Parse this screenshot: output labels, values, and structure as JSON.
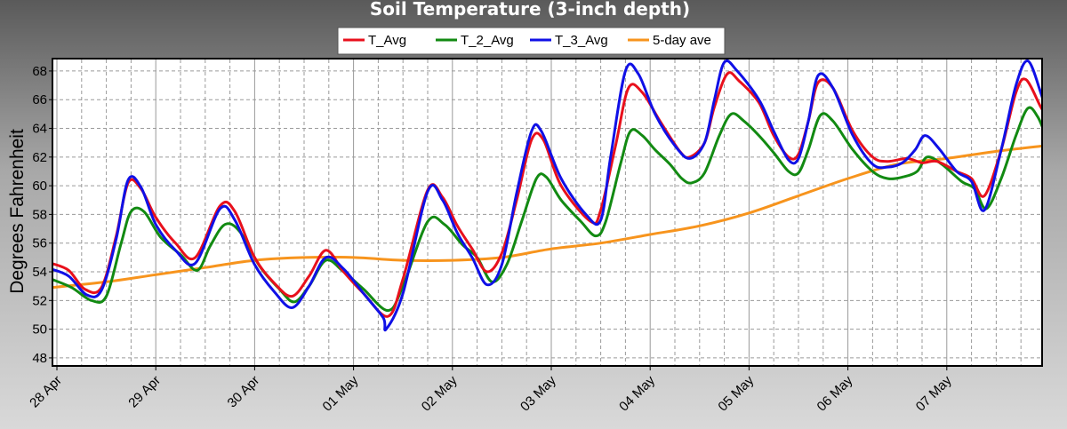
{
  "chart_data": {
    "type": "line",
    "title": "Soil Temperature (3-inch depth)",
    "xlabel": "",
    "ylabel": "Degrees Fahrenheit",
    "ylim": [
      47.5,
      68.8
    ],
    "yticks": [
      48,
      50,
      52,
      54,
      56,
      58,
      60,
      62,
      64,
      66,
      68
    ],
    "xlim": [
      0,
      10.0
    ],
    "xticks": [
      {
        "pos": 0.0,
        "label": "28 Apr"
      },
      {
        "pos": 1.0,
        "label": "29 Apr"
      },
      {
        "pos": 2.0,
        "label": "30 Apr"
      },
      {
        "pos": 3.0,
        "label": "01 May"
      },
      {
        "pos": 4.0,
        "label": "02 May"
      },
      {
        "pos": 5.0,
        "label": "03 May"
      },
      {
        "pos": 6.0,
        "label": "04 May"
      },
      {
        "pos": 7.0,
        "label": "05 May"
      },
      {
        "pos": 8.0,
        "label": "06 May"
      },
      {
        "pos": 9.0,
        "label": "07 May"
      }
    ],
    "grid": true,
    "legend_position": "top-center",
    "series": [
      {
        "name": "T_Avg",
        "color": "#e8101c",
        "points": [
          [
            -0.06,
            54.6
          ],
          [
            0.12,
            54.1
          ],
          [
            0.28,
            52.8
          ],
          [
            0.45,
            52.9
          ],
          [
            0.6,
            56.5
          ],
          [
            0.72,
            60.2
          ],
          [
            0.85,
            59.8
          ],
          [
            1.0,
            57.8
          ],
          [
            1.2,
            56.0
          ],
          [
            1.4,
            55.0
          ],
          [
            1.65,
            58.6
          ],
          [
            1.8,
            58.2
          ],
          [
            2.0,
            55.0
          ],
          [
            2.2,
            53.2
          ],
          [
            2.38,
            52.3
          ],
          [
            2.55,
            53.7
          ],
          [
            2.72,
            55.5
          ],
          [
            2.9,
            54.0
          ],
          [
            3.1,
            52.5
          ],
          [
            3.35,
            50.9
          ],
          [
            3.5,
            53.5
          ],
          [
            3.75,
            59.7
          ],
          [
            3.9,
            59.2
          ],
          [
            4.05,
            57.2
          ],
          [
            4.2,
            55.6
          ],
          [
            4.35,
            54.0
          ],
          [
            4.5,
            55.3
          ],
          [
            4.65,
            59.0
          ],
          [
            4.8,
            63.2
          ],
          [
            4.92,
            63.2
          ],
          [
            5.1,
            60.0
          ],
          [
            5.4,
            57.5
          ],
          [
            5.5,
            58.3
          ],
          [
            5.65,
            62.8
          ],
          [
            5.78,
            66.8
          ],
          [
            5.92,
            66.5
          ],
          [
            6.1,
            64.5
          ],
          [
            6.3,
            62.4
          ],
          [
            6.4,
            62.0
          ],
          [
            6.55,
            63.0
          ],
          [
            6.65,
            65.5
          ],
          [
            6.78,
            67.8
          ],
          [
            6.9,
            67.3
          ],
          [
            7.1,
            65.8
          ],
          [
            7.25,
            63.5
          ],
          [
            7.4,
            62.0
          ],
          [
            7.5,
            62.2
          ],
          [
            7.6,
            64.5
          ],
          [
            7.7,
            67.2
          ],
          [
            7.85,
            66.8
          ],
          [
            8.05,
            63.8
          ],
          [
            8.25,
            62.0
          ],
          [
            8.4,
            61.7
          ],
          [
            8.6,
            61.9
          ],
          [
            8.75,
            61.6
          ],
          [
            8.9,
            61.7
          ],
          [
            9.1,
            61.0
          ],
          [
            9.25,
            60.5
          ],
          [
            9.38,
            59.3
          ],
          [
            9.55,
            62.5
          ],
          [
            9.7,
            66.5
          ],
          [
            9.8,
            67.4
          ],
          [
            9.95,
            65.5
          ],
          [
            10.0,
            65.0
          ]
        ]
      },
      {
        "name": "T_2_Avg",
        "color": "#128a12",
        "points": [
          [
            -0.06,
            53.5
          ],
          [
            0.15,
            52.9
          ],
          [
            0.35,
            52.0
          ],
          [
            0.5,
            52.3
          ],
          [
            0.65,
            56.0
          ],
          [
            0.75,
            58.2
          ],
          [
            0.88,
            58.2
          ],
          [
            1.05,
            56.4
          ],
          [
            1.25,
            55.2
          ],
          [
            1.42,
            54.1
          ],
          [
            1.55,
            55.8
          ],
          [
            1.7,
            57.3
          ],
          [
            1.85,
            56.8
          ],
          [
            2.05,
            54.4
          ],
          [
            2.25,
            52.8
          ],
          [
            2.4,
            51.9
          ],
          [
            2.55,
            53.0
          ],
          [
            2.72,
            54.8
          ],
          [
            2.9,
            54.0
          ],
          [
            3.1,
            52.8
          ],
          [
            3.35,
            51.3
          ],
          [
            3.5,
            53.0
          ],
          [
            3.75,
            57.5
          ],
          [
            3.92,
            57.3
          ],
          [
            4.1,
            55.9
          ],
          [
            4.25,
            55.0
          ],
          [
            4.4,
            53.3
          ],
          [
            4.55,
            54.5
          ],
          [
            4.7,
            57.5
          ],
          [
            4.85,
            60.5
          ],
          [
            4.95,
            60.6
          ],
          [
            5.1,
            59.0
          ],
          [
            5.3,
            57.5
          ],
          [
            5.45,
            56.5
          ],
          [
            5.55,
            57.5
          ],
          [
            5.7,
            61.5
          ],
          [
            5.8,
            63.8
          ],
          [
            5.92,
            63.5
          ],
          [
            6.05,
            62.5
          ],
          [
            6.2,
            61.5
          ],
          [
            6.32,
            60.5
          ],
          [
            6.42,
            60.2
          ],
          [
            6.55,
            60.9
          ],
          [
            6.7,
            63.5
          ],
          [
            6.82,
            65.0
          ],
          [
            6.95,
            64.5
          ],
          [
            7.1,
            63.5
          ],
          [
            7.25,
            62.3
          ],
          [
            7.4,
            61.0
          ],
          [
            7.5,
            60.9
          ],
          [
            7.6,
            62.5
          ],
          [
            7.72,
            64.9
          ],
          [
            7.85,
            64.5
          ],
          [
            8.05,
            62.5
          ],
          [
            8.25,
            61.0
          ],
          [
            8.4,
            60.5
          ],
          [
            8.55,
            60.6
          ],
          [
            8.7,
            61.0
          ],
          [
            8.8,
            62.0
          ],
          [
            8.95,
            61.5
          ],
          [
            9.15,
            60.3
          ],
          [
            9.28,
            59.8
          ],
          [
            9.4,
            58.4
          ],
          [
            9.55,
            60.5
          ],
          [
            9.7,
            63.5
          ],
          [
            9.82,
            65.4
          ],
          [
            9.92,
            64.8
          ],
          [
            10.0,
            63.5
          ]
        ]
      },
      {
        "name": "T_3_Avg",
        "color": "#1010e6",
        "points": [
          [
            -0.06,
            54.2
          ],
          [
            0.12,
            53.7
          ],
          [
            0.3,
            52.4
          ],
          [
            0.45,
            52.7
          ],
          [
            0.6,
            56.3
          ],
          [
            0.72,
            60.4
          ],
          [
            0.85,
            59.9
          ],
          [
            1.0,
            57.3
          ],
          [
            1.2,
            55.5
          ],
          [
            1.4,
            54.6
          ],
          [
            1.65,
            58.4
          ],
          [
            1.8,
            57.6
          ],
          [
            2.0,
            54.5
          ],
          [
            2.2,
            52.6
          ],
          [
            2.38,
            51.5
          ],
          [
            2.55,
            53.0
          ],
          [
            2.72,
            55.0
          ],
          [
            2.9,
            54.2
          ],
          [
            3.1,
            52.5
          ],
          [
            3.3,
            50.8
          ],
          [
            3.33,
            50.0
          ],
          [
            3.5,
            52.5
          ],
          [
            3.75,
            59.6
          ],
          [
            3.9,
            59.0
          ],
          [
            4.05,
            56.7
          ],
          [
            4.2,
            55.0
          ],
          [
            4.35,
            53.1
          ],
          [
            4.5,
            54.5
          ],
          [
            4.65,
            59.5
          ],
          [
            4.8,
            63.8
          ],
          [
            4.9,
            63.8
          ],
          [
            5.1,
            60.5
          ],
          [
            5.35,
            58.0
          ],
          [
            5.5,
            57.6
          ],
          [
            5.6,
            62.0
          ],
          [
            5.75,
            68.0
          ],
          [
            5.88,
            67.8
          ],
          [
            6.05,
            65.0
          ],
          [
            6.25,
            62.8
          ],
          [
            6.4,
            61.9
          ],
          [
            6.55,
            63.0
          ],
          [
            6.65,
            66.0
          ],
          [
            6.75,
            68.6
          ],
          [
            6.88,
            68.0
          ],
          [
            7.1,
            66.0
          ],
          [
            7.25,
            63.8
          ],
          [
            7.4,
            61.8
          ],
          [
            7.5,
            61.9
          ],
          [
            7.6,
            64.5
          ],
          [
            7.7,
            67.7
          ],
          [
            7.85,
            66.8
          ],
          [
            8.05,
            63.5
          ],
          [
            8.25,
            61.5
          ],
          [
            8.4,
            61.3
          ],
          [
            8.55,
            61.6
          ],
          [
            8.68,
            62.5
          ],
          [
            8.78,
            63.5
          ],
          [
            8.92,
            62.6
          ],
          [
            9.1,
            61.0
          ],
          [
            9.25,
            60.3
          ],
          [
            9.38,
            58.3
          ],
          [
            9.55,
            62.5
          ],
          [
            9.7,
            67.0
          ],
          [
            9.82,
            68.7
          ],
          [
            9.95,
            66.5
          ],
          [
            10.0,
            65.2
          ]
        ]
      },
      {
        "name": "5-day ave",
        "color": "#f7941d",
        "points": [
          [
            -0.06,
            52.9
          ],
          [
            0.5,
            53.3
          ],
          [
            1.0,
            53.8
          ],
          [
            1.5,
            54.3
          ],
          [
            2.0,
            54.8
          ],
          [
            2.5,
            55.0
          ],
          [
            3.0,
            55.0
          ],
          [
            3.5,
            54.8
          ],
          [
            4.0,
            54.8
          ],
          [
            4.5,
            55.0
          ],
          [
            5.0,
            55.6
          ],
          [
            5.5,
            56.0
          ],
          [
            6.0,
            56.6
          ],
          [
            6.5,
            57.2
          ],
          [
            7.0,
            58.1
          ],
          [
            7.5,
            59.3
          ],
          [
            8.0,
            60.5
          ],
          [
            8.5,
            61.5
          ],
          [
            9.0,
            61.9
          ],
          [
            9.5,
            62.4
          ],
          [
            10.0,
            62.8
          ]
        ]
      }
    ]
  }
}
